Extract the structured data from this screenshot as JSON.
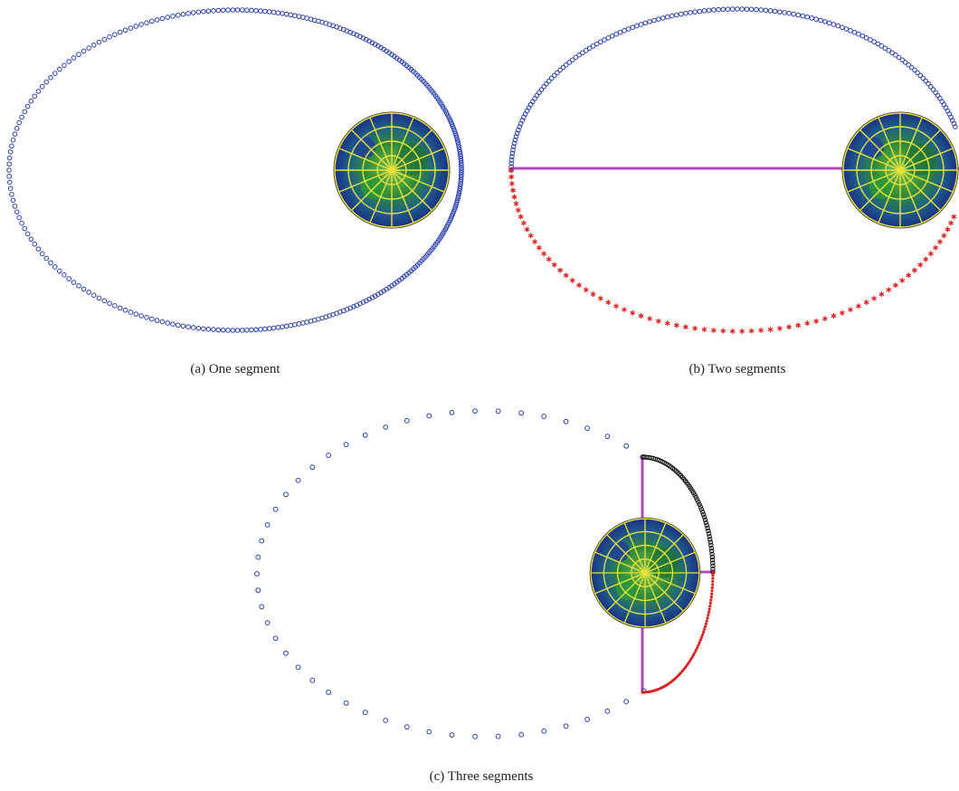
{
  "figure": {
    "captions": [
      "(a)  One segment",
      "(b)  Two segments",
      "(c)  Three segments"
    ]
  }
}
